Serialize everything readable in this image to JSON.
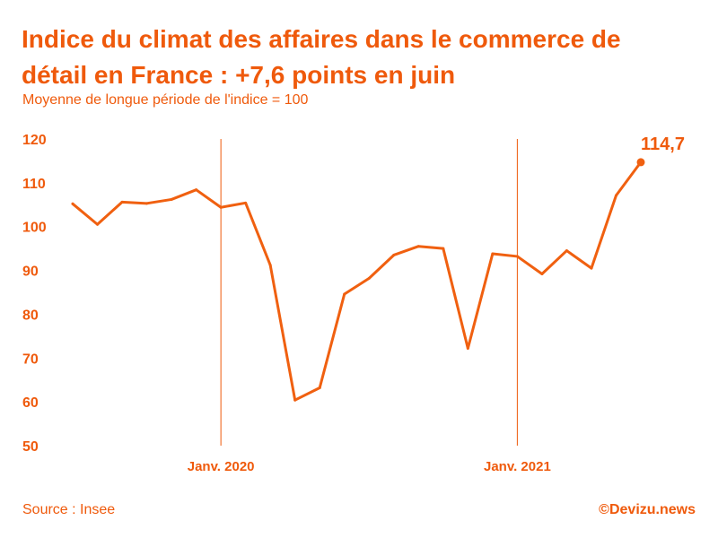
{
  "header": {
    "title": "Indice du climat des affaires dans le commerce de détail en France : +7,6 points en juin",
    "subtitle": "Moyenne de longue période de l'indice = 100"
  },
  "footer": {
    "source": "Source : Insee",
    "credit": "©Devizu.news"
  },
  "colors": {
    "accent": "#ef5a0c",
    "line": "#f06010"
  },
  "chart_data": {
    "type": "line",
    "title": "Indice du climat des affaires dans le commerce de détail en France : +7,6 points en juin",
    "subtitle": "Moyenne de longue période de l'indice = 100",
    "xlabel": "",
    "ylabel": "",
    "ylim": [
      50,
      120
    ],
    "yticks": [
      120,
      110,
      100,
      90,
      80,
      70,
      60,
      50
    ],
    "ytick_labels": [
      "120",
      "110",
      "100",
      "90",
      "80",
      "70",
      "60",
      "50"
    ],
    "x": [
      "2019-07",
      "2019-08",
      "2019-09",
      "2019-10",
      "2019-11",
      "2019-12",
      "2020-01",
      "2020-02",
      "2020-03",
      "2020-04",
      "2020-05",
      "2020-06",
      "2020-07",
      "2020-08",
      "2020-09",
      "2020-10",
      "2020-11",
      "2020-12",
      "2021-01",
      "2021-02",
      "2021-03",
      "2021-04",
      "2021-05",
      "2021-06"
    ],
    "series": [
      {
        "values": [
          105.2,
          100.5,
          105.6,
          105.3,
          106.2,
          108.4,
          104.4,
          105.4,
          91.2,
          60.4,
          63.2,
          84.6,
          88.2,
          93.5,
          95.5,
          95.0,
          72.2,
          93.8,
          93.2,
          89.2,
          94.5,
          90.5,
          107.1,
          114.7
        ]
      }
    ],
    "x_markers": [
      {
        "x": "2020-01",
        "label": "Janv. 2020"
      },
      {
        "x": "2021-01",
        "label": "Janv. 2021"
      }
    ],
    "annotations": [
      {
        "x": "2021-06",
        "text": "114,7"
      }
    ],
    "grid": false,
    "legend": "none"
  }
}
